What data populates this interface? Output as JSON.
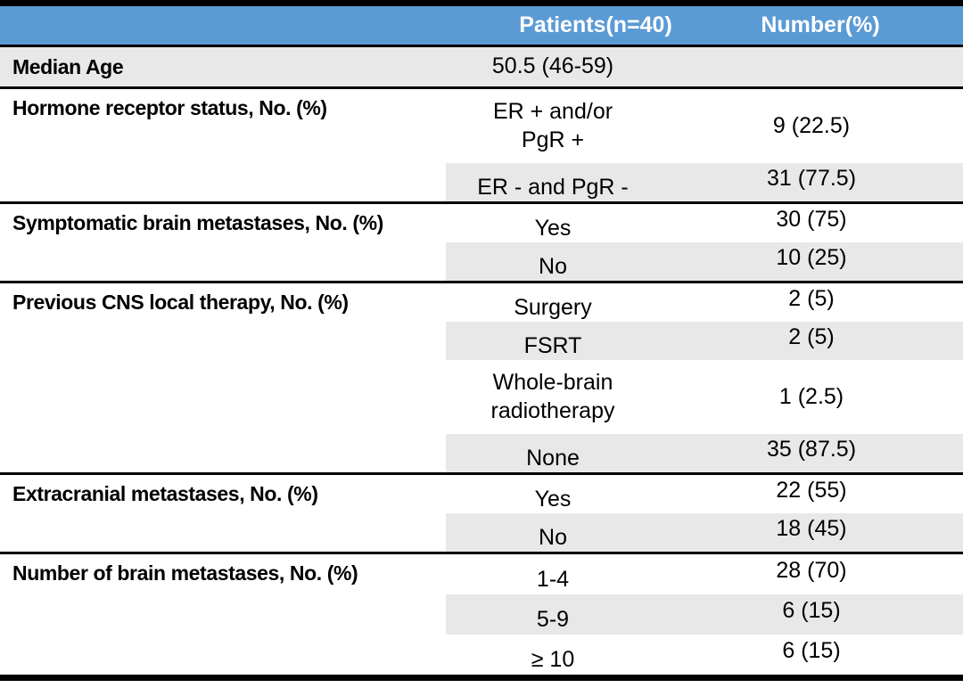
{
  "header": {
    "patients_label": "Patients(n=40)",
    "number_label": "Number(%)"
  },
  "colors": {
    "header_bg": "#5B9BD5",
    "header_text": "#FFFFFF",
    "band_gray": "#E8E8E8",
    "line_black": "#000000"
  },
  "table": {
    "groups": [
      {
        "label": "Median Age",
        "rows": [
          {
            "category": "50.5 (46-59)",
            "value": ""
          }
        ]
      },
      {
        "label": "Hormone receptor status, No. (%)",
        "rows": [
          {
            "category": "ER + and/or\nPgR +",
            "value": "9 (22.5)"
          },
          {
            "category": "ER - and PgR -",
            "value": "31 (77.5)"
          }
        ]
      },
      {
        "label": "Symptomatic brain metastases, No. (%)",
        "rows": [
          {
            "category": "Yes",
            "value": "30 (75)"
          },
          {
            "category": "No",
            "value": "10 (25)"
          }
        ]
      },
      {
        "label": "Previous CNS local therapy, No. (%)",
        "rows": [
          {
            "category": "Surgery",
            "value": "2 (5)"
          },
          {
            "category": "FSRT",
            "value": "2 (5)"
          },
          {
            "category": "Whole-brain\nradiotherapy",
            "value": "1 (2.5)"
          },
          {
            "category": "None",
            "value": "35 (87.5)"
          }
        ]
      },
      {
        "label": "Extracranial metastases, No. (%)",
        "rows": [
          {
            "category": "Yes",
            "value": "22 (55)"
          },
          {
            "category": "No",
            "value": "18 (45)"
          }
        ]
      },
      {
        "label": "Number of brain metastases, No. (%)",
        "rows": [
          {
            "category": "1-4",
            "value": "28 (70)"
          },
          {
            "category": "5-9",
            "value": "6 (15)"
          },
          {
            "category": "≥ 10",
            "value": "6 (15)"
          }
        ]
      }
    ]
  },
  "chart_data": {
    "type": "table",
    "columns": [
      "",
      "Patients(n=40)",
      "Number(%)"
    ],
    "rows": [
      [
        "Median Age",
        "50.5 (46-59)",
        ""
      ],
      [
        "Hormone receptor status, No. (%)",
        "ER + and/or PgR +",
        "9 (22.5)"
      ],
      [
        "",
        "ER - and PgR -",
        "31 (77.5)"
      ],
      [
        "Symptomatic brain metastases, No. (%)",
        "Yes",
        "30 (75)"
      ],
      [
        "",
        "No",
        "10 (25)"
      ],
      [
        "Previous CNS local therapy, No. (%)",
        "Surgery",
        "2 (5)"
      ],
      [
        "",
        "FSRT",
        "2 (5)"
      ],
      [
        "",
        "Whole-brain radiotherapy",
        "1 (2.5)"
      ],
      [
        "",
        "None",
        "35 (87.5)"
      ],
      [
        "Extracranial metastases, No. (%)",
        "Yes",
        "22 (55)"
      ],
      [
        "",
        "No",
        "18 (45)"
      ],
      [
        "Number of brain metastases, No. (%)",
        "1-4",
        "28 (70)"
      ],
      [
        "",
        "5-9",
        "6 (15)"
      ],
      [
        "",
        "≥ 10",
        "6 (15)"
      ]
    ]
  }
}
